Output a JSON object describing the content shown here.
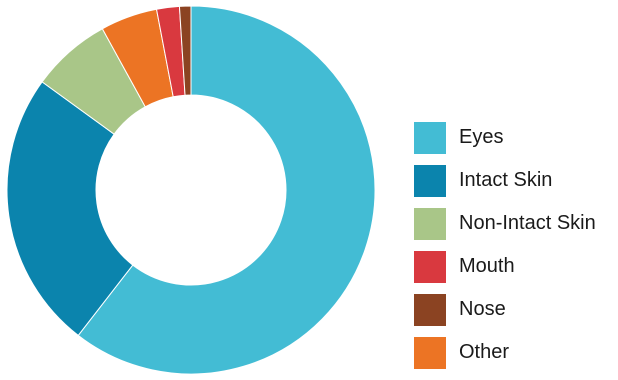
{
  "chart_data": {
    "type": "pie",
    "donut": true,
    "title": "",
    "categories": [
      "Eyes",
      "Intact Skin",
      "Non-Intact Skin",
      "Mouth",
      "Nose",
      "Other"
    ],
    "values": [
      60.5,
      24.5,
      7.0,
      2.0,
      1.0,
      5.0
    ],
    "unit": "percent",
    "colors": {
      "Eyes": "#43bcd4",
      "Intact Skin": "#0b84ad",
      "Non-Intact Skin": "#a9c688",
      "Mouth": "#d9393f",
      "Nose": "#8b4322",
      "Other": "#ec7424"
    },
    "slice_order": [
      "Eyes",
      "Intact Skin",
      "Non-Intact Skin",
      "Other",
      "Mouth",
      "Nose"
    ],
    "start_angle": "12 o'clock",
    "direction": "clockwise",
    "legend": {
      "placement": "right",
      "entries": [
        "Eyes",
        "Intact Skin",
        "Non-Intact Skin",
        "Mouth",
        "Nose",
        "Other"
      ]
    }
  }
}
